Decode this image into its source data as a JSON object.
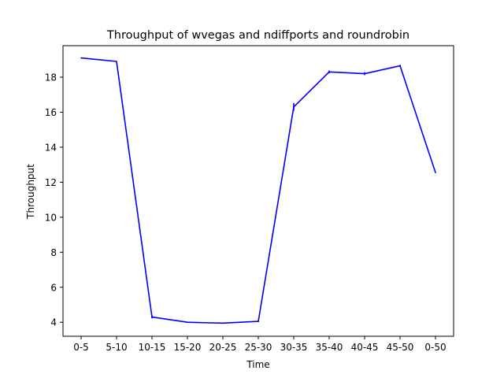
{
  "chart_data": {
    "type": "line",
    "title": "Throughput of wvegas and ndiffports and roundrobin",
    "xlabel": "Time",
    "ylabel": "Throughput",
    "categories": [
      "0-5",
      "5-10",
      "10-15",
      "15-20",
      "20-25",
      "25-30",
      "30-35",
      "35-40",
      "40-45",
      "45-50",
      "0-50"
    ],
    "ylim": [
      3.2,
      19.8
    ],
    "yticks": [
      4,
      6,
      8,
      10,
      12,
      14,
      16,
      18
    ],
    "grid": false,
    "series": [
      {
        "values": [
          19.1,
          18.9,
          4.3,
          4.0,
          3.95,
          4.05,
          16.3,
          18.3,
          18.2,
          18.65,
          12.55
        ],
        "errors": [
          0.0,
          0.0,
          0.08,
          0.03,
          0.03,
          0.03,
          0.22,
          0.08,
          0.08,
          0.06,
          0.0
        ],
        "color": "#0000ff"
      }
    ]
  }
}
